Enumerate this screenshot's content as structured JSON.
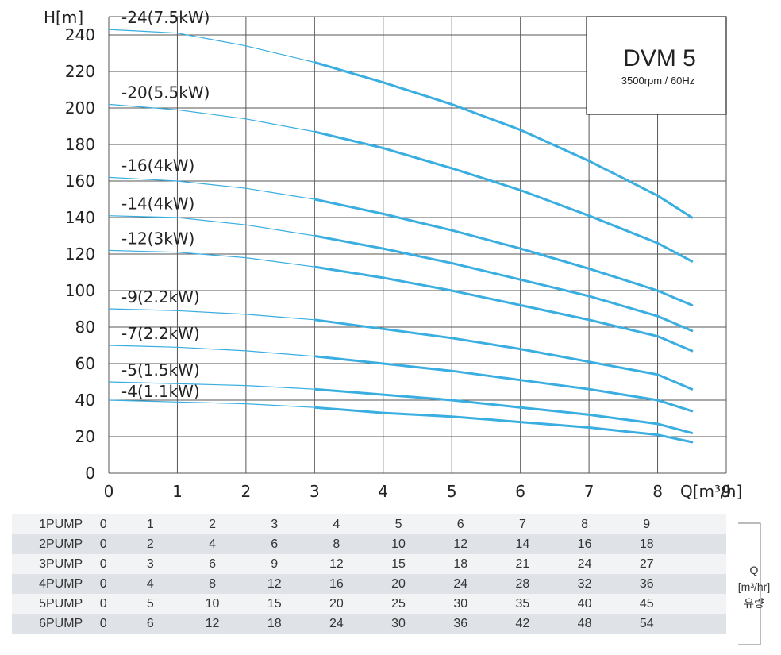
{
  "chart_data": {
    "type": "line",
    "title": "DVM 5",
    "subtitle": "3500rpm / 60Hz",
    "ylabel": "H[m]",
    "xlabel": "Q[m³/h]",
    "xlim": [
      0,
      9
    ],
    "ylim": [
      0,
      250
    ],
    "x_ticks": [
      "0",
      "1",
      "2",
      "3",
      "4",
      "5",
      "6",
      "7",
      "8",
      "9"
    ],
    "y_ticks": [
      "0",
      "20",
      "40",
      "60",
      "80",
      "100",
      "120",
      "140",
      "160",
      "180",
      "200",
      "220",
      "240"
    ],
    "grid": true,
    "line_color": "#3aaee0",
    "series": [
      {
        "name": "-24(7.5kW)",
        "x": [
          0,
          1,
          2,
          3,
          4,
          5,
          6,
          7,
          8,
          8.5
        ],
        "y": [
          243,
          241,
          234,
          225,
          214,
          202,
          188,
          171,
          152,
          140
        ]
      },
      {
        "name": "-20(5.5kW)",
        "x": [
          0,
          1,
          2,
          3,
          4,
          5,
          6,
          7,
          8,
          8.5
        ],
        "y": [
          202,
          199,
          194,
          187,
          178,
          167,
          155,
          141,
          126,
          116
        ]
      },
      {
        "name": "-16(4kW)",
        "x": [
          0,
          1,
          2,
          3,
          4,
          5,
          6,
          7,
          8,
          8.5
        ],
        "y": [
          162,
          160,
          156,
          150,
          142,
          133,
          123,
          112,
          100,
          92
        ]
      },
      {
        "name": "-14(4kW)",
        "x": [
          0,
          1,
          2,
          3,
          4,
          5,
          6,
          7,
          8,
          8.5
        ],
        "y": [
          141,
          140,
          136,
          130,
          123,
          115,
          106,
          97,
          86,
          78
        ]
      },
      {
        "name": "-12(3kW)",
        "x": [
          0,
          1,
          2,
          3,
          4,
          5,
          6,
          7,
          8,
          8.5
        ],
        "y": [
          122,
          121,
          118,
          113,
          107,
          100,
          92,
          84,
          75,
          67
        ]
      },
      {
        "name": "-9(2.2kW)",
        "x": [
          0,
          1,
          2,
          3,
          4,
          5,
          6,
          7,
          8,
          8.5
        ],
        "y": [
          90,
          89,
          87,
          84,
          79,
          74,
          68,
          61,
          54,
          46
        ]
      },
      {
        "name": "-7(2.2kW)",
        "x": [
          0,
          1,
          2,
          3,
          4,
          5,
          6,
          7,
          8,
          8.5
        ],
        "y": [
          70,
          69,
          67,
          64,
          60,
          56,
          51,
          46,
          40,
          34
        ]
      },
      {
        "name": "-5(1.5kW)",
        "x": [
          0,
          1,
          2,
          3,
          4,
          5,
          6,
          7,
          8,
          8.5
        ],
        "y": [
          50,
          49,
          48,
          46,
          43,
          40,
          36,
          32,
          27,
          22
        ]
      },
      {
        "name": "-4(1.1kW)",
        "x": [
          0,
          1,
          2,
          3,
          4,
          5,
          6,
          7,
          8,
          8.5
        ],
        "y": [
          40,
          39,
          38,
          36,
          33,
          31,
          28,
          25,
          21,
          17
        ]
      }
    ]
  },
  "table": {
    "rows": [
      {
        "label": "1PUMP",
        "values": [
          "0",
          "1",
          "2",
          "3",
          "4",
          "5",
          "6",
          "7",
          "8",
          "9"
        ]
      },
      {
        "label": "2PUMP",
        "values": [
          "0",
          "2",
          "4",
          "6",
          "8",
          "10",
          "12",
          "14",
          "16",
          "18"
        ]
      },
      {
        "label": "3PUMP",
        "values": [
          "0",
          "3",
          "6",
          "9",
          "12",
          "15",
          "18",
          "21",
          "24",
          "27"
        ]
      },
      {
        "label": "4PUMP",
        "values": [
          "0",
          "4",
          "8",
          "12",
          "16",
          "20",
          "24",
          "28",
          "32",
          "36"
        ]
      },
      {
        "label": "5PUMP",
        "values": [
          "0",
          "5",
          "10",
          "15",
          "20",
          "25",
          "30",
          "35",
          "40",
          "45"
        ]
      },
      {
        "label": "6PUMP",
        "values": [
          "0",
          "6",
          "12",
          "18",
          "24",
          "30",
          "36",
          "42",
          "48",
          "54"
        ]
      }
    ],
    "unit_symbol": "Q",
    "unit": "[m³/hr]",
    "unit_name": "유량"
  }
}
